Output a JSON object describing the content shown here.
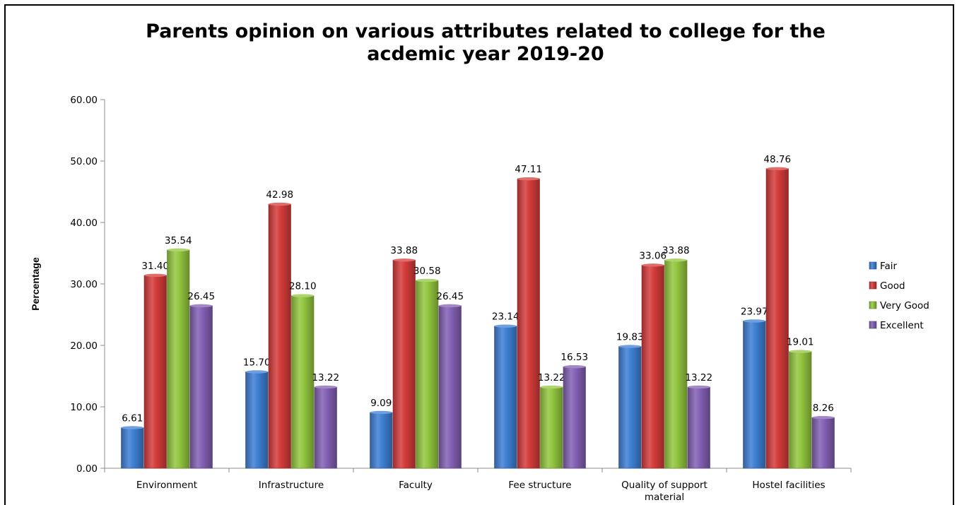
{
  "chart_data": {
    "type": "bar",
    "title_lines": [
      "Parents opinion on various attributes related to college for the",
      "acdemic year 2019-20"
    ],
    "ylabel": "Percentage",
    "xlabel": "",
    "ylim": [
      0,
      60
    ],
    "yticks": [
      "0.00",
      "10.00",
      "20.00",
      "30.00",
      "40.00",
      "50.00",
      "60.00"
    ],
    "categories": [
      "Environment",
      "Infrastructure",
      "Faculty",
      "Fee structure",
      "Quality of support material",
      "Hostel facilities"
    ],
    "series": [
      {
        "name": "Fair",
        "color": "#3f7fd3",
        "values": [
          6.61,
          15.7,
          9.09,
          23.14,
          19.83,
          23.97
        ],
        "labels": [
          "6.61",
          "15.70",
          "9.09",
          "23.14",
          "19.83",
          "23.97"
        ]
      },
      {
        "name": "Good",
        "color": "#d43c3a",
        "values": [
          31.4,
          42.98,
          33.88,
          47.11,
          33.06,
          48.76
        ],
        "labels": [
          "31.40",
          "42.98",
          "33.88",
          "47.11",
          "33.06",
          "48.76"
        ]
      },
      {
        "name": "Very Good",
        "color": "#93c63f",
        "values": [
          35.54,
          28.1,
          30.58,
          13.22,
          33.88,
          19.01
        ],
        "labels": [
          "35.54",
          "28.10",
          "30.58",
          "13.22",
          "33.88",
          "19.01"
        ]
      },
      {
        "name": "Excellent",
        "color": "#8360b4",
        "values": [
          26.45,
          13.22,
          26.45,
          16.53,
          13.22,
          8.26
        ],
        "labels": [
          "26.45",
          "13.22",
          "26.45",
          "16.53",
          "13.22",
          "8.26"
        ]
      }
    ],
    "legend_position": "right",
    "grid": false
  }
}
